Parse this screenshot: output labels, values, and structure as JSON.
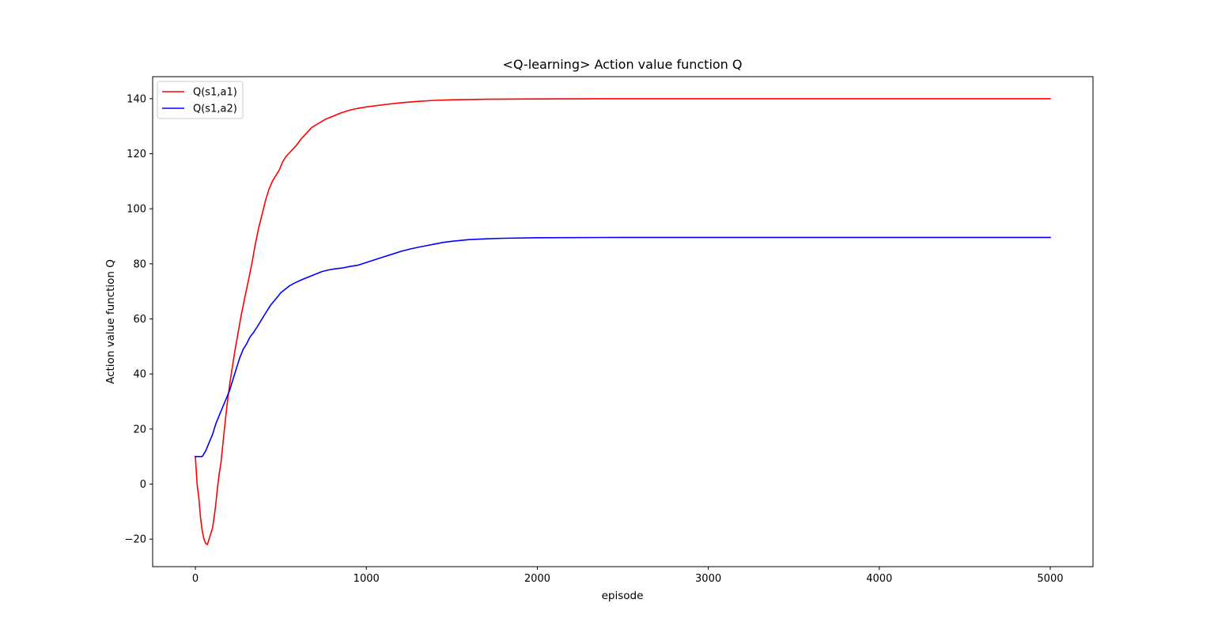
{
  "chart_data": {
    "type": "line",
    "title": "<Q-learning> Action value function Q",
    "xlabel": "episode",
    "ylabel": "Action value function Q",
    "xlim": [
      -250,
      5250
    ],
    "ylim": [
      -30,
      148
    ],
    "xticks": [
      0,
      1000,
      2000,
      3000,
      4000,
      5000
    ],
    "yticks": [
      -20,
      0,
      20,
      40,
      60,
      80,
      100,
      120,
      140
    ],
    "ytick_labels": [
      "−20",
      "0",
      "20",
      "40",
      "60",
      "80",
      "100",
      "120",
      "140"
    ],
    "grid": false,
    "legend_position": "top-left",
    "series": [
      {
        "name": "Q(s1,a1)",
        "color": "#ff0000",
        "x": [
          0,
          10,
          20,
          30,
          40,
          50,
          60,
          70,
          80,
          90,
          100,
          110,
          120,
          130,
          140,
          150,
          160,
          170,
          180,
          190,
          200,
          215,
          230,
          250,
          270,
          290,
          310,
          330,
          350,
          370,
          390,
          410,
          430,
          450,
          470,
          490,
          510,
          530,
          560,
          590,
          620,
          650,
          680,
          720,
          760,
          800,
          850,
          900,
          950,
          1000,
          1100,
          1200,
          1300,
          1400,
          1500,
          1700,
          2000,
          2500,
          3000,
          4000,
          5000
        ],
        "y": [
          10,
          0,
          -5,
          -12,
          -17,
          -20,
          -21.5,
          -22,
          -20,
          -18,
          -16,
          -12,
          -7,
          -1,
          4,
          8,
          14,
          20,
          26,
          31,
          36,
          42,
          48,
          55,
          62,
          68,
          74,
          80,
          87,
          93,
          98,
          103,
          107,
          110,
          112,
          114,
          117,
          119,
          121,
          123,
          125.5,
          127.5,
          129.5,
          131,
          132.5,
          133.5,
          134.8,
          135.8,
          136.5,
          137,
          137.8,
          138.5,
          139,
          139.4,
          139.6,
          139.8,
          139.9,
          140,
          140,
          140,
          140
        ]
      },
      {
        "name": "Q(s1,a2)",
        "color": "#0000ff",
        "x": [
          0,
          20,
          40,
          60,
          80,
          100,
          120,
          140,
          160,
          180,
          200,
          220,
          240,
          260,
          280,
          300,
          320,
          340,
          360,
          380,
          400,
          420,
          440,
          460,
          480,
          500,
          520,
          550,
          580,
          620,
          660,
          700,
          740,
          780,
          820,
          860,
          900,
          950,
          1000,
          1050,
          1100,
          1150,
          1200,
          1250,
          1300,
          1350,
          1400,
          1450,
          1500,
          1600,
          1700,
          1800,
          2000,
          2500,
          3000,
          4000,
          5000
        ],
        "y": [
          10,
          10,
          10,
          12,
          15,
          18,
          22,
          25,
          28,
          31,
          34,
          38,
          42,
          46,
          49,
          51,
          53.5,
          55,
          57,
          59,
          61,
          63,
          65,
          66.5,
          68,
          69.5,
          70.5,
          72,
          73,
          74.2,
          75.2,
          76.2,
          77.2,
          77.8,
          78.2,
          78.5,
          79,
          79.5,
          80.5,
          81.5,
          82.5,
          83.5,
          84.5,
          85.3,
          86,
          86.6,
          87.2,
          87.8,
          88.2,
          88.8,
          89.1,
          89.3,
          89.5,
          89.6,
          89.6,
          89.6,
          89.6
        ]
      }
    ]
  }
}
